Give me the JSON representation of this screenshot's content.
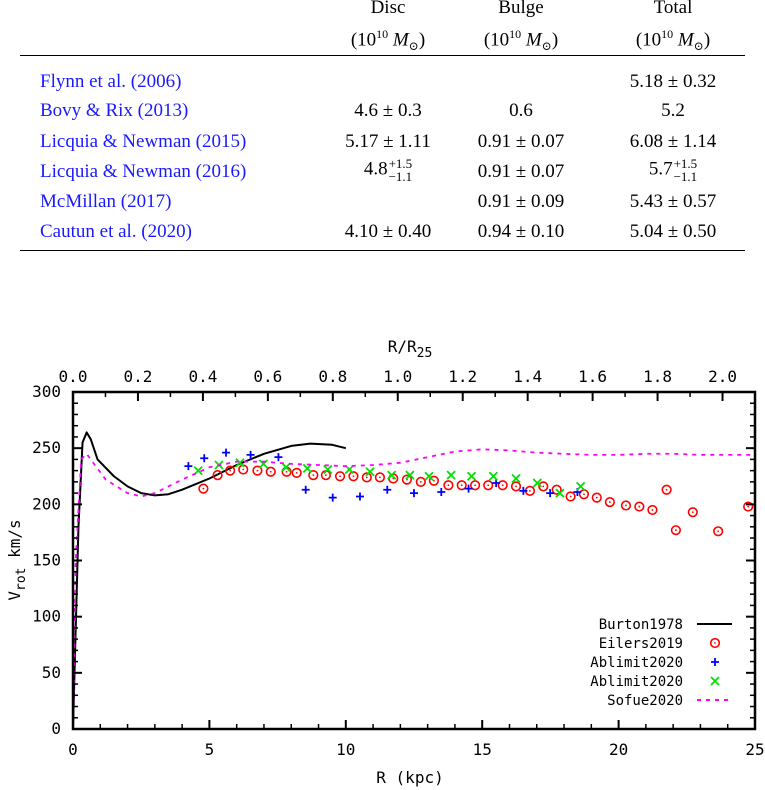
{
  "table": {
    "headers": [
      {
        "title": "Disc",
        "unit_pre": "(10",
        "unit_exp": "10",
        "unit_sym": " M",
        "unit_sub": "⊙",
        "unit_post": ")"
      },
      {
        "title": "Bulge",
        "unit_pre": "(10",
        "unit_exp": "10",
        "unit_sym": " M",
        "unit_sub": "⊙",
        "unit_post": ")"
      },
      {
        "title": "Total",
        "unit_pre": "(10",
        "unit_exp": "10",
        "unit_sym": " M",
        "unit_sub": "⊙",
        "unit_post": ")"
      }
    ],
    "rows": [
      {
        "authors": "Flynn et al. (",
        "year": "2006",
        "close": ")",
        "disc": {
          "v": ""
        },
        "bulge": {
          "v": ""
        },
        "total": {
          "v": "5.18 ± 0.32"
        }
      },
      {
        "authors": "Bovy & Rix (",
        "year": "2013",
        "close": ")",
        "disc": {
          "v": "4.6 ± 0.3"
        },
        "bulge": {
          "v": "0.6"
        },
        "total": {
          "v": "5.2"
        }
      },
      {
        "authors": "Licquia & Newman (",
        "year": "2015",
        "close": ")",
        "disc": {
          "v": "5.17 ± 1.11"
        },
        "bulge": {
          "v": "0.91 ± 0.07"
        },
        "total": {
          "v": "6.08 ± 1.14"
        }
      },
      {
        "authors": "Licquia & Newman (",
        "year": "2016",
        "close": ")",
        "disc": {
          "v": "4.8",
          "plus": "+1.5",
          "minus": "−1.1"
        },
        "bulge": {
          "v": "0.91 ± 0.07"
        },
        "total": {
          "v": "5.7",
          "plus": "+1.5",
          "minus": "−1.1"
        }
      },
      {
        "authors": "McMillan (",
        "year": "2017",
        "close": ")",
        "disc": {
          "v": ""
        },
        "bulge": {
          "v": "0.91 ± 0.09"
        },
        "total": {
          "v": "5.43 ± 0.57"
        }
      },
      {
        "authors": "Cautun et al. (",
        "year": "2020",
        "close": ")",
        "disc": {
          "v": "4.10 ± 0.40"
        },
        "bulge": {
          "v": "0.94 ± 0.10"
        },
        "total": {
          "v": "5.04 ± 0.50"
        }
      }
    ],
    "link_color": "#1a1aff"
  },
  "chart_data": {
    "type": "scatter",
    "xlabel": {
      "main": "R    (kpc)"
    },
    "ylabel": {
      "main": "V",
      "sub": "rot",
      "rest": "  km/s"
    },
    "x2label": {
      "main": "R/R",
      "sub": "25"
    },
    "xlim": [
      0,
      25
    ],
    "ylim": [
      0,
      300
    ],
    "x2lim": [
      0,
      2.1
    ],
    "xticks": [
      "0",
      "5",
      "10",
      "15",
      "20",
      "25"
    ],
    "yticks": [
      "0",
      "50",
      "100",
      "150",
      "200",
      "250",
      "300"
    ],
    "x2ticks": [
      "0.0",
      "0.2",
      "0.4",
      "0.6",
      "0.8",
      "1.0",
      "1.2",
      "1.4",
      "1.6",
      "1.8",
      "2.0"
    ],
    "grid": false,
    "legend_position": "bottom-right",
    "series": [
      {
        "name": "Burton1978",
        "style": "line",
        "color": "#000000",
        "x": [
          0,
          0.2,
          0.35,
          0.5,
          0.65,
          0.9,
          1.5,
          2,
          2.5,
          3,
          3.5,
          4,
          5,
          6,
          7,
          8,
          8.7,
          9.5,
          10
        ],
        "y": [
          0,
          180,
          255,
          264,
          258,
          240,
          225,
          216,
          210,
          208,
          209,
          213,
          223,
          235,
          245,
          252,
          254,
          253,
          250
        ]
      },
      {
        "name": "Eilers2019",
        "style": "circle",
        "color": "#ff0000",
        "x": [
          4.78,
          5.3,
          5.76,
          6.24,
          6.76,
          7.25,
          7.83,
          8.2,
          8.81,
          9.27,
          9.79,
          10.28,
          10.77,
          11.25,
          11.74,
          12.24,
          12.75,
          13.23,
          13.76,
          14.25,
          14.74,
          15.22,
          15.75,
          16.24,
          16.75,
          17.24,
          17.73,
          18.24,
          18.73,
          19.2,
          19.68,
          20.27,
          20.76,
          21.24,
          21.76,
          22.1,
          22.72,
          23.65,
          24.75
        ],
        "y": [
          214,
          226,
          230,
          231,
          230,
          229,
          229,
          228,
          226,
          226,
          225,
          225,
          224,
          224,
          223,
          222,
          220,
          221,
          217,
          217,
          217,
          217,
          217,
          216,
          212,
          216,
          213,
          207,
          209,
          206,
          202,
          199,
          198,
          195,
          213,
          177,
          193,
          176,
          198
        ]
      },
      {
        "name": "Ablimit2020",
        "style": "plus",
        "color": "#0000ff",
        "x": [
          4.23,
          4.81,
          5.61,
          6.51,
          7.53,
          8.53,
          9.52,
          10.52,
          11.52,
          12.5,
          13.5,
          14.5,
          15.51,
          16.51,
          17.49,
          18.49
        ],
        "y": [
          234,
          241,
          246,
          244,
          242,
          213,
          206,
          207,
          213,
          210,
          211,
          214,
          219,
          212,
          210,
          211
        ]
      },
      {
        "name": "Ablimit2020",
        "style": "cross",
        "color": "#00e000",
        "x": [
          4.59,
          5.35,
          6.12,
          6.98,
          7.81,
          8.59,
          9.34,
          10.13,
          10.89,
          11.68,
          12.35,
          13.05,
          13.86,
          14.61,
          15.41,
          16.24,
          17.02,
          17.85,
          18.61
        ],
        "y": [
          230,
          235,
          237,
          236,
          233,
          232,
          231,
          231,
          229,
          226,
          226,
          225,
          226,
          225,
          225,
          223,
          219,
          210,
          216
        ]
      },
      {
        "name": "Sofue2020",
        "style": "dashed",
        "color": "#ff00ff",
        "x": [
          0,
          0.1,
          0.3,
          0.5,
          0.8,
          1.2,
          2,
          2.5,
          3,
          3.5,
          4,
          5,
          6,
          7,
          8,
          9,
          10,
          11,
          12,
          13,
          14,
          15,
          16,
          17,
          18,
          19,
          20,
          21,
          22,
          23,
          24,
          25
        ],
        "y": [
          0,
          150,
          240,
          245,
          235,
          222,
          210,
          207,
          210,
          216,
          222,
          233,
          238,
          238,
          236,
          235,
          234,
          235,
          237,
          242,
          247,
          249,
          248,
          246,
          245,
          244,
          244,
          245,
          245,
          244,
          244,
          244
        ]
      }
    ]
  }
}
